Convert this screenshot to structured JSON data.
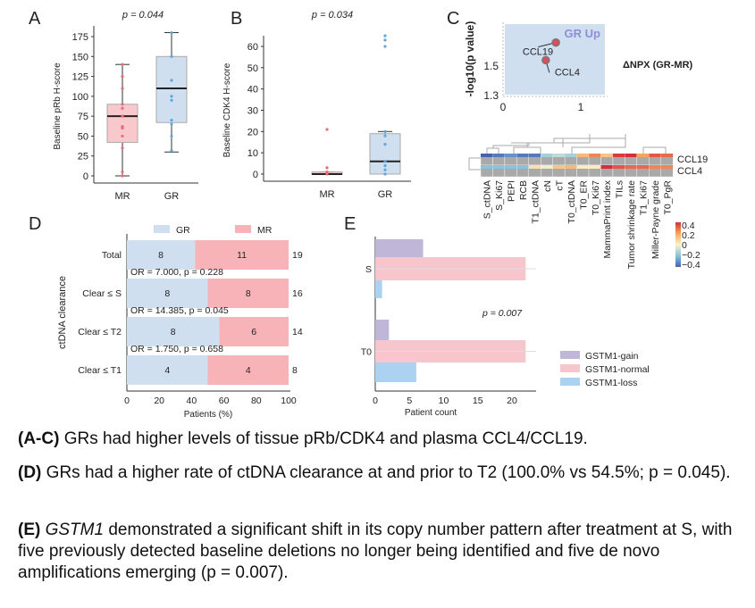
{
  "panel_letters": [
    "A",
    "B",
    "C",
    "D",
    "E"
  ],
  "chart_data": [
    {
      "panel": "A",
      "type": "box",
      "title": "p = 0.044",
      "ylabel": "Baseline pRb H-score",
      "categories": [
        "MR",
        "GR"
      ],
      "ylim": [
        0,
        175
      ],
      "yticks": [
        0,
        25,
        50,
        75,
        100,
        125,
        150,
        175
      ],
      "boxes": [
        {
          "name": "MR",
          "min": 0,
          "q1": 42,
          "median": 75,
          "q3": 90,
          "max": 140,
          "points": [
            140,
            125,
            110,
            90,
            85,
            75,
            62,
            60,
            50,
            35,
            5,
            0
          ],
          "color": "#f8c8cc",
          "point_color": "#e56c74"
        },
        {
          "name": "GR",
          "min": 30,
          "q1": 67,
          "median": 110,
          "q3": 150,
          "max": 180,
          "points": [
            180,
            150,
            120,
            100,
            95,
            70,
            65,
            50,
            32
          ],
          "color": "#cfdff0",
          "point_color": "#58a8dc"
        }
      ]
    },
    {
      "panel": "B",
      "type": "box",
      "title": "p = 0.034",
      "ylabel": "Baseline CDK4 H-score",
      "categories": [
        "MR",
        "GR"
      ],
      "ylim": [
        0,
        60
      ],
      "yticks": [
        0,
        10,
        20,
        30,
        40,
        50,
        60
      ],
      "boxes": [
        {
          "name": "MR",
          "min": 0,
          "q1": 0,
          "median": 0,
          "q3": 1,
          "max": 1,
          "points": [
            21,
            3,
            1,
            0.5,
            0
          ],
          "color": "#f8c8cc",
          "point_color": "#e56c74"
        },
        {
          "name": "GR",
          "min": 0,
          "q1": 0,
          "median": 6,
          "q3": 19,
          "max": 20,
          "points": [
            65,
            63,
            60,
            20,
            18,
            14,
            6,
            4,
            2,
            0
          ],
          "color": "#cfdff0",
          "point_color": "#58a8dc"
        }
      ]
    },
    {
      "panel": "C",
      "type": "scatter",
      "ylabel": "-log10(p value)",
      "xlabel": "ΔNPX (GR-MR)",
      "region_label": "GR Up",
      "xlim": [
        0,
        1.3
      ],
      "ylim": [
        1.3,
        1.75
      ],
      "xticks": [
        0,
        1
      ],
      "yticks": [
        1.3,
        1.5
      ],
      "points": [
        {
          "label": "CCL19",
          "x": 0.68,
          "y": 1.66
        },
        {
          "label": "CCL4",
          "x": 0.55,
          "y": 1.54
        }
      ],
      "heatmap": {
        "type": "heatmap",
        "rows": [
          "CCL19",
          "CCL4"
        ],
        "columns": [
          "S_ctDNA",
          "S_Ki67",
          "PEPI",
          "RCB",
          "T1_ctDNA",
          "cN",
          "cT",
          "T0_ctDNA",
          "T0_ER",
          "T0_Ki67",
          "MammaPrint index",
          "TILs",
          "Tumor shrinkage rate",
          "T1_Ki67",
          "Miller-Payne grade",
          "T0_PgR"
        ],
        "values": [
          [
            -0.4,
            -0.35,
            -0.3,
            -0.35,
            -0.35,
            -0.15,
            -0.1,
            -0.15,
            0.15,
            0.25,
            0.12,
            0.38,
            0.4,
            0.2,
            0.33,
            0.3
          ],
          [
            -0.2,
            -0.2,
            -0.2,
            -0.2,
            0.05,
            -0.02,
            0.12,
            0.15,
            0.02,
            0.02,
            0.4,
            0.33,
            0.3,
            0.3,
            0.25,
            0.25
          ]
        ],
        "colorbar_ticks": [
          "0.4",
          "0.2",
          "0",
          "−0.2",
          "−0.4"
        ],
        "range": [
          -0.4,
          0.4
        ]
      }
    },
    {
      "panel": "D",
      "type": "bar",
      "orientation": "horizontal",
      "stacked": true,
      "ylabel": "ctDNA clearance",
      "xlabel": "Patients (%)",
      "xlim": [
        0,
        100
      ],
      "xticks": [
        0,
        20,
        40,
        60,
        80,
        100
      ],
      "legend": "top",
      "categories": [
        "Total",
        "Clear ≤ S",
        "Clear ≤ T2",
        "Clear ≤ T1"
      ],
      "series": [
        {
          "name": "GR",
          "values": [
            8,
            8,
            8,
            4
          ],
          "color": "#cfdff0"
        },
        {
          "name": "MR",
          "values": [
            11,
            8,
            6,
            4
          ],
          "color": "#f8b3b8"
        }
      ],
      "totals": [
        19,
        16,
        14,
        8
      ],
      "annotations": [
        "OR = 7.000, p = 0.228",
        "OR = 14.385, p = 0.045",
        "OR = 1.750, p = 0.658"
      ]
    },
    {
      "panel": "E",
      "type": "bar",
      "orientation": "horizontal",
      "xlabel": "Patient count",
      "xlim": [
        0,
        22.5
      ],
      "xticks": [
        0,
        5,
        10,
        15,
        20
      ],
      "categories": [
        "S",
        "T0"
      ],
      "annotation": "p = 0.007",
      "legend": "right",
      "series": [
        {
          "name": "GSTM1-gain",
          "values": [
            7,
            2
          ],
          "color": "#bfb6d8"
        },
        {
          "name": "GSTM1-normal",
          "values": [
            22,
            22
          ],
          "color": "#f6c6cc"
        },
        {
          "name": "GSTM1-loss",
          "values": [
            1,
            6
          ],
          "color": "#acd2f2"
        }
      ]
    }
  ],
  "caption": [
    {
      "bold": "(A-C)",
      "text": " GRs had higher levels of tissue pRb/CDK4 and plasma CCL4/CCL19."
    },
    {
      "bold": "(D)",
      "text": " GRs had a higher rate of ctDNA clearance at and prior to T2 (100.0% vs 54.5%; p = 0.045)."
    },
    {
      "bold": "(E)",
      "italic": "GSTM1",
      "text": " demonstrated a significant shift in its copy number pattern after treatment at S, with five previously detected baseline deletions no longer being identified and five de novo amplifications emerging (p = 0.007)."
    }
  ]
}
